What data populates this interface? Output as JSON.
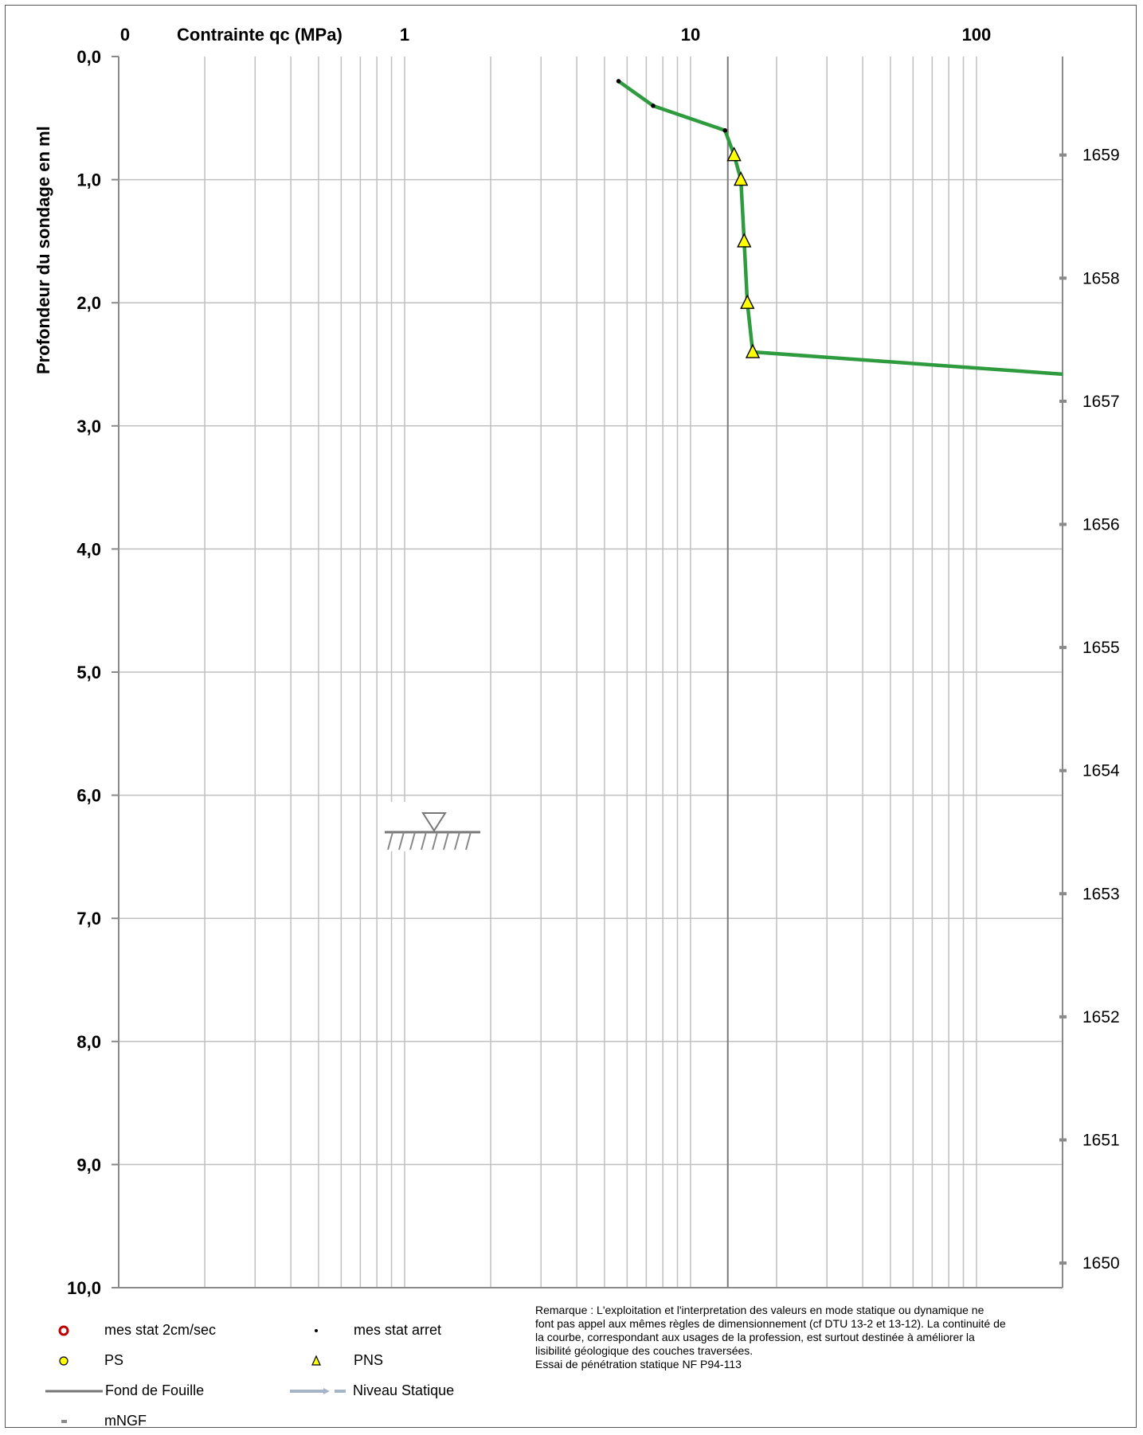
{
  "chart_data": {
    "type": "line",
    "x_scale": "log",
    "y_inverted": true,
    "xlim": [
      0.1,
      200
    ],
    "ylim": [
      0,
      10
    ],
    "xlabel": "Contrainte qc  (MPa)",
    "ylabel": "Profondeur du sondage en ml",
    "x_ticks": [
      {
        "value": 0.1,
        "label": "0"
      },
      {
        "value": 1,
        "label": "1"
      },
      {
        "value": 10,
        "label": "10"
      },
      {
        "value": 100,
        "label": "100"
      }
    ],
    "y_ticks": [
      "0,0",
      "1,0",
      "2,0",
      "3,0",
      "4,0",
      "5,0",
      "6,0",
      "7,0",
      "8,0",
      "9,0",
      "10,0"
    ],
    "right_axis": {
      "ticks": [
        {
          "depth": 0.8,
          "label": "1659"
        },
        {
          "depth": 1.8,
          "label": "1658"
        },
        {
          "depth": 2.8,
          "label": "1657"
        },
        {
          "depth": 3.8,
          "label": "1656"
        },
        {
          "depth": 4.8,
          "label": "1655"
        },
        {
          "depth": 5.8,
          "label": "1654"
        },
        {
          "depth": 6.8,
          "label": "1653"
        },
        {
          "depth": 7.8,
          "label": "1652"
        },
        {
          "depth": 8.8,
          "label": "1651"
        },
        {
          "depth": 9.8,
          "label": "1650"
        }
      ]
    },
    "grid": true,
    "series": [
      {
        "name": "",
        "color": "#2e9b3e",
        "points": [
          [
            5.6,
            0.2
          ],
          [
            7.4,
            0.4
          ],
          [
            13.2,
            0.6
          ],
          [
            14.2,
            0.8
          ],
          [
            15.0,
            1.0
          ],
          [
            15.4,
            1.5
          ],
          [
            15.8,
            2.0
          ],
          [
            16.5,
            2.4
          ],
          [
            200,
            2.58
          ]
        ]
      },
      {
        "name": "mes stat arret",
        "marker": "dot",
        "points": [
          [
            5.6,
            0.2
          ],
          [
            7.4,
            0.4
          ],
          [
            13.2,
            0.6
          ]
        ]
      },
      {
        "name": "PNS",
        "marker": "triangle",
        "color": "#ffff00",
        "points": [
          [
            14.2,
            0.8
          ],
          [
            15.0,
            1.0
          ],
          [
            15.4,
            1.5
          ],
          [
            15.8,
            2.0
          ],
          [
            16.5,
            2.4
          ]
        ]
      }
    ],
    "fond_de_fouille_x": 13.5,
    "niveau_statique_depth": 6.3
  },
  "legend": {
    "items": [
      {
        "label": "mes stat 2cm/sec",
        "symbol": "circle-red"
      },
      {
        "label": "mes stat arret",
        "symbol": "dot"
      },
      {
        "label": "PS",
        "symbol": "circle-yellow"
      },
      {
        "label": "PNS",
        "symbol": "triangle-yellow"
      },
      {
        "label": "Fond de Fouille",
        "symbol": "line-grey"
      },
      {
        "label": "Niveau Statique",
        "symbol": "arrow-bluegrey"
      },
      {
        "label": "mNGF",
        "symbol": "dash-grey"
      }
    ]
  },
  "remark": {
    "lines": [
      "Remarque : L'exploitation et l'interpretation des valeurs en mode statique ou dynamique ne",
      "font pas appel aux mêmes règles de dimensionnement (cf DTU 13-2 et 13-12).  La continuité de",
      "la courbe, correspondant aux usages de la profession, est surtout destinée à améliorer la",
      "lisibilité géologique des couches traversées.",
      "Essai de pénétration statique NF P94-113"
    ]
  },
  "colors": {
    "curve": "#2e9b3e",
    "grid": "#c0c0c0",
    "pns_fill": "#ffff00",
    "ps_fill": "#ffff00",
    "stat_circle": "#c00000",
    "niveau_statique": "#a6b4c8"
  }
}
